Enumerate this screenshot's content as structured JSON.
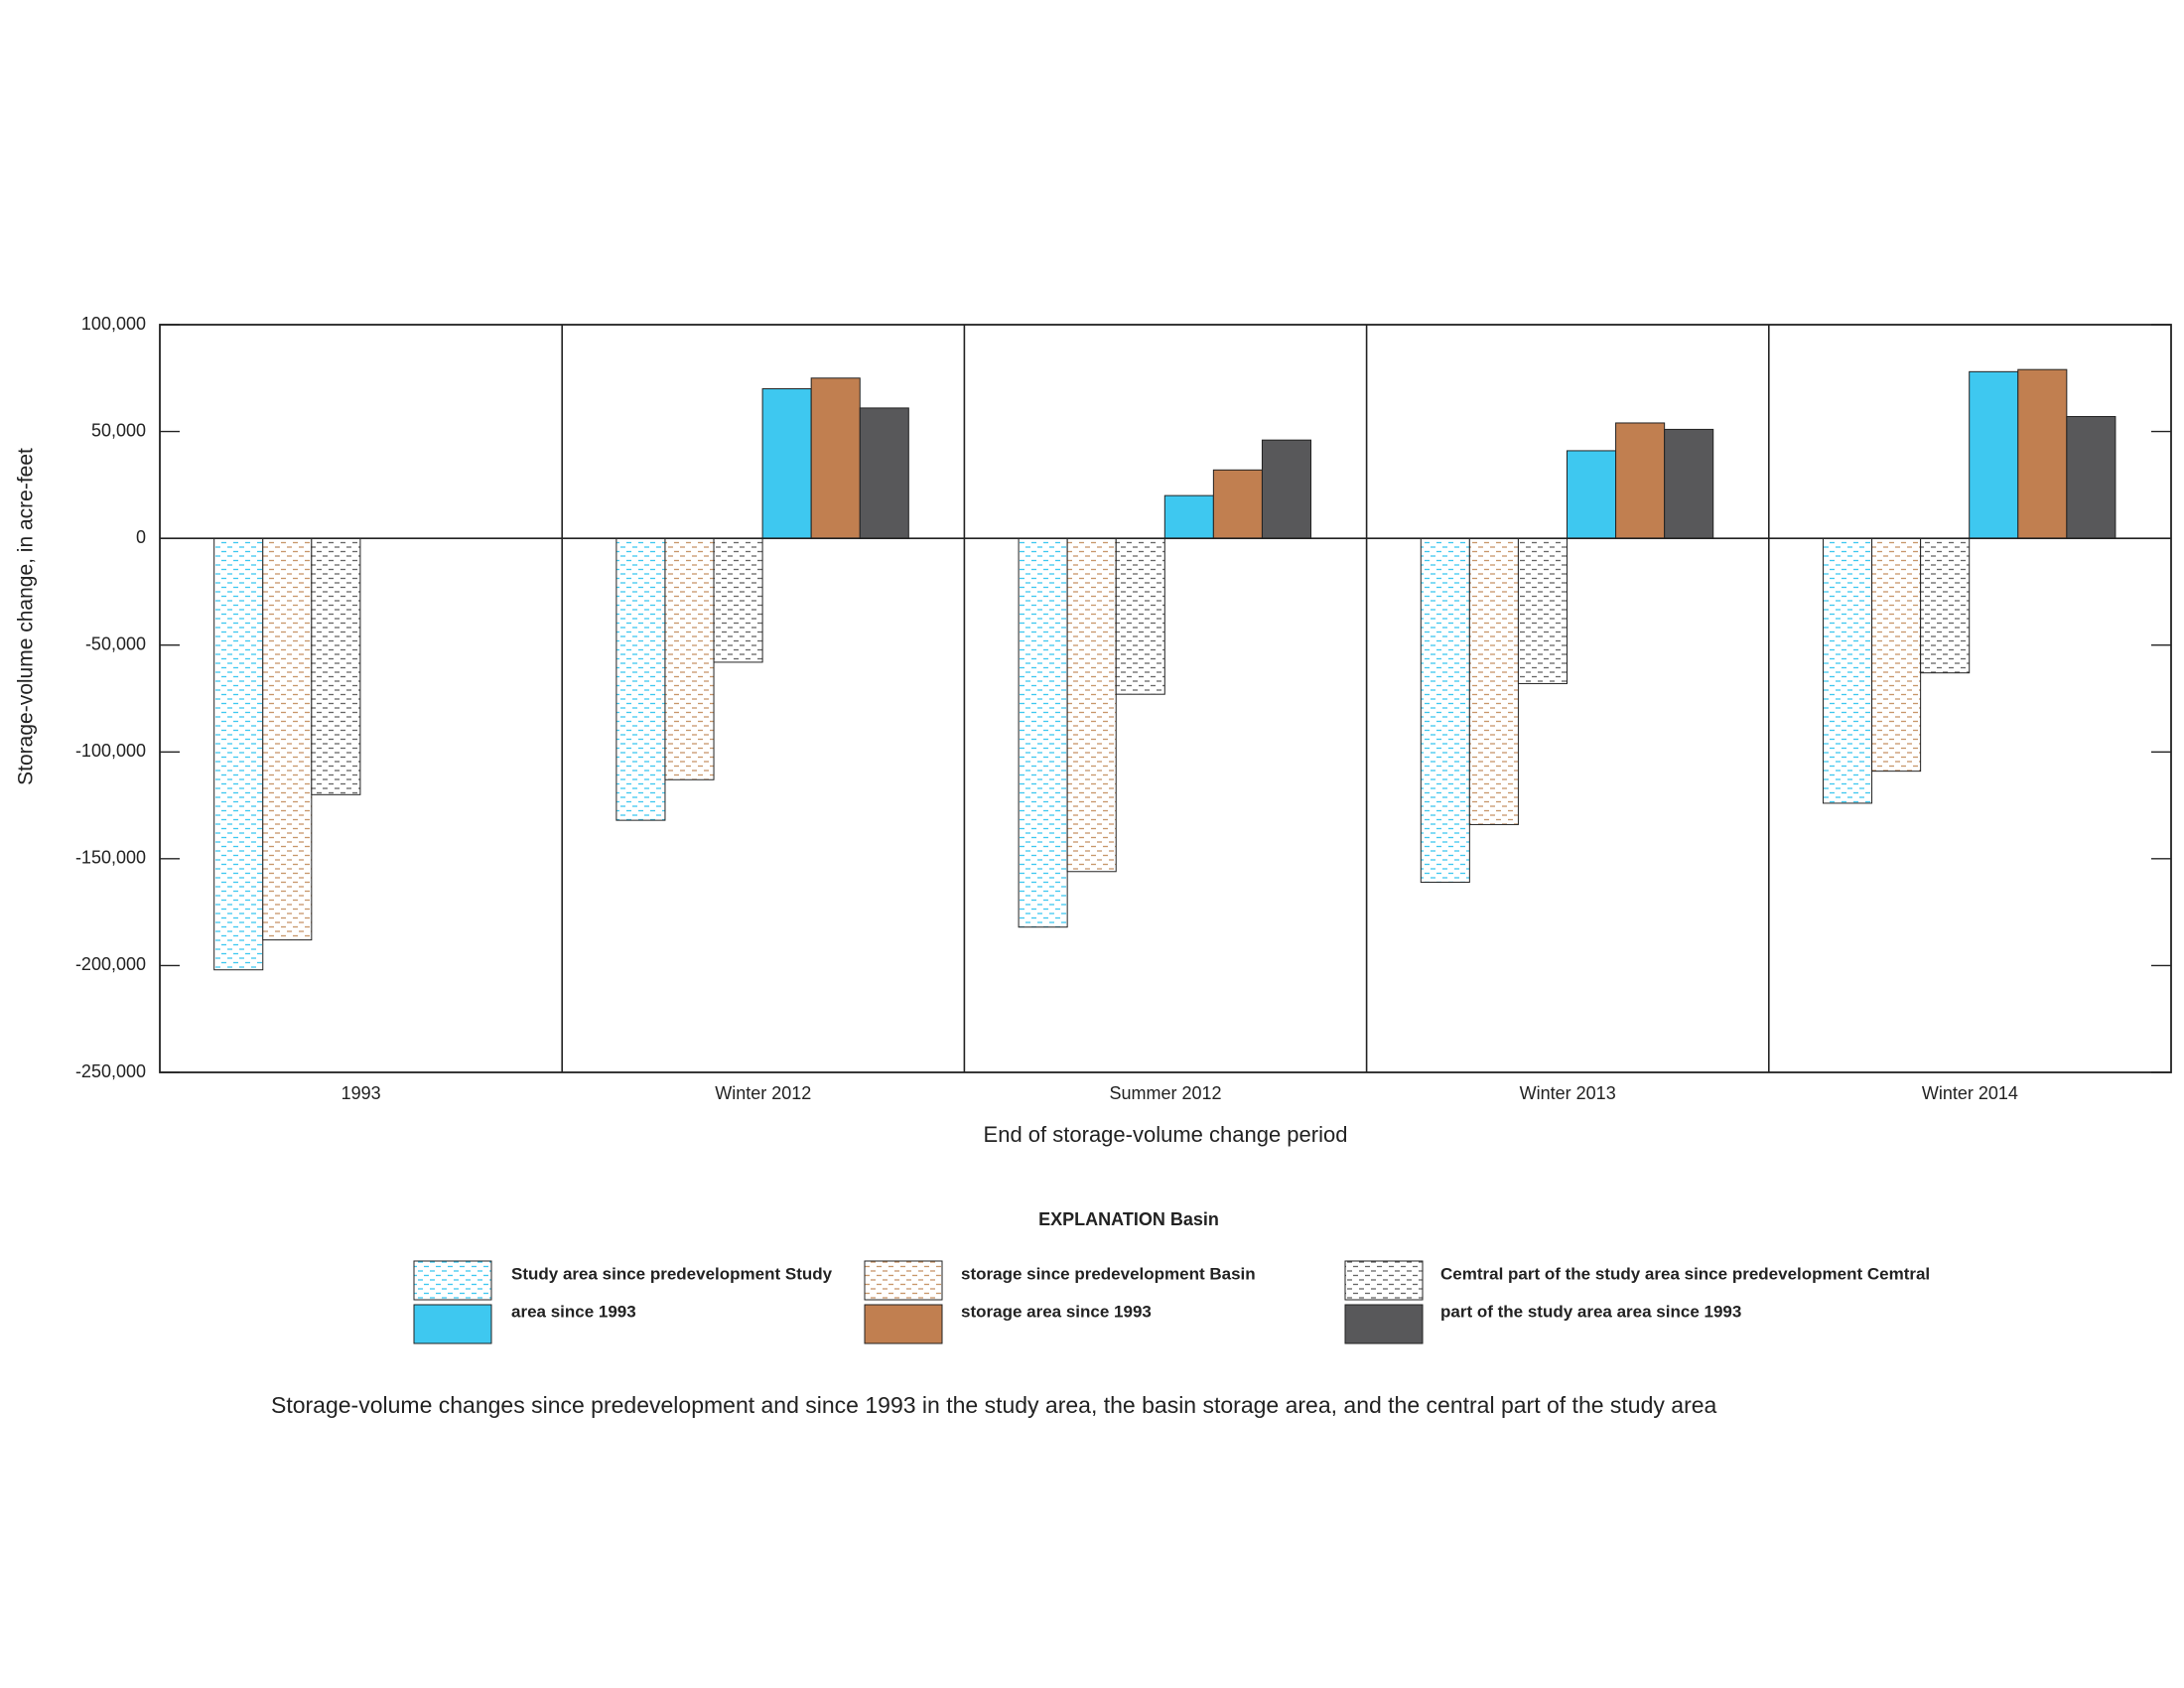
{
  "chart_data": {
    "type": "bar",
    "title": "Storage-volume changes since predevelopment and since 1993 in the study area, the basin storage area, and the central part of the study area",
    "x_label": "End of storage-volume change period",
    "y_label": "Storage-volume change, in acre-feet",
    "legend_title": "EXPLANATION Basin",
    "categories": [
      "1993",
      "Winter 2012",
      "Summer 2012",
      "Winter 2013",
      "Winter 2014"
    ],
    "series": [
      {
        "name": "Study area since predevelopment Study",
        "color": "#3ec8f0",
        "pattern": "dashed",
        "values": [
          -202000,
          -132000,
          -182000,
          -161000,
          -124000
        ]
      },
      {
        "name": "storage since predevelopment Basin",
        "color": "#c8966a",
        "pattern": "dashed",
        "values": [
          -188000,
          -113000,
          -156000,
          -134000,
          -109000
        ]
      },
      {
        "name": "Cemtral part of the study area since predevelopment Cemtral",
        "color": "#666666",
        "pattern": "dashed",
        "values": [
          -120000,
          -58000,
          -73000,
          -68000,
          -63000
        ]
      },
      {
        "name": "area since 1993",
        "color": "#3ec8f0",
        "pattern": "solid",
        "values": [
          null,
          70000,
          20000,
          41000,
          78000
        ]
      },
      {
        "name": "storage area since 1993",
        "color": "#c17f50",
        "pattern": "solid",
        "values": [
          null,
          75000,
          32000,
          54000,
          79000
        ]
      },
      {
        "name": "part of the study area area since 1993",
        "color": "#58585a",
        "pattern": "solid",
        "values": [
          null,
          61000,
          46000,
          51000,
          57000
        ]
      }
    ],
    "ylim": [
      -250000,
      100000
    ],
    "yticks": [
      {
        "value": -250000,
        "label": "-250,000"
      },
      {
        "value": -200000,
        "label": "-200,000"
      },
      {
        "value": -150000,
        "label": "-150,000"
      },
      {
        "value": -100000,
        "label": "-100,000"
      },
      {
        "value": -50000,
        "label": "-50,000"
      },
      0,
      {
        "value": 50000,
        "label": "50,000"
      },
      {
        "value": 100000,
        "label": "100,000"
      }
    ]
  }
}
